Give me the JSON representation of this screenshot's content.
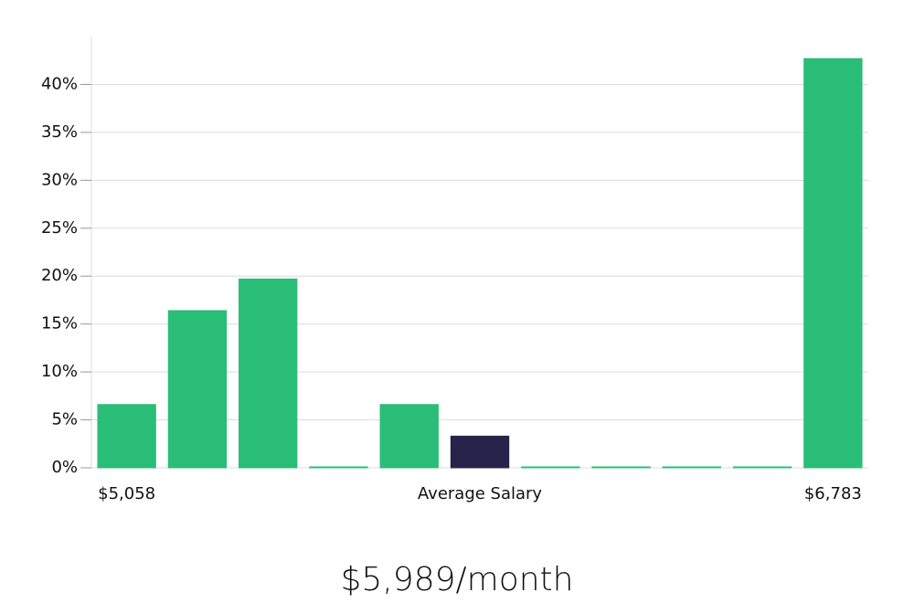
{
  "chart_data": {
    "type": "bar",
    "categories": [
      "$5,058",
      null,
      null,
      null,
      null,
      "Average Salary",
      null,
      null,
      null,
      null,
      "$6,783"
    ],
    "values": [
      6.6,
      16.4,
      19.7,
      0,
      6.6,
      3.3,
      0,
      0,
      0,
      0,
      42.7
    ],
    "colors": [
      "#2abd77",
      "#2abd77",
      "#2abd77",
      "#2abd77",
      "#2abd77",
      "#27234a",
      "#2abd77",
      "#2abd77",
      "#2abd77",
      "#2abd77",
      "#2abd77"
    ],
    "ylim": [
      0,
      45
    ],
    "yticks": [
      {
        "value": 0,
        "label": "0%"
      },
      {
        "value": 5,
        "label": "5%"
      },
      {
        "value": 10,
        "label": "10%"
      },
      {
        "value": 15,
        "label": "15%"
      },
      {
        "value": 20,
        "label": "20%"
      },
      {
        "value": 25,
        "label": "25%"
      },
      {
        "value": 30,
        "label": "30%"
      },
      {
        "value": 35,
        "label": "35%"
      },
      {
        "value": 40,
        "label": "40%"
      }
    ],
    "grid": true,
    "caption": "$5,989/month"
  }
}
